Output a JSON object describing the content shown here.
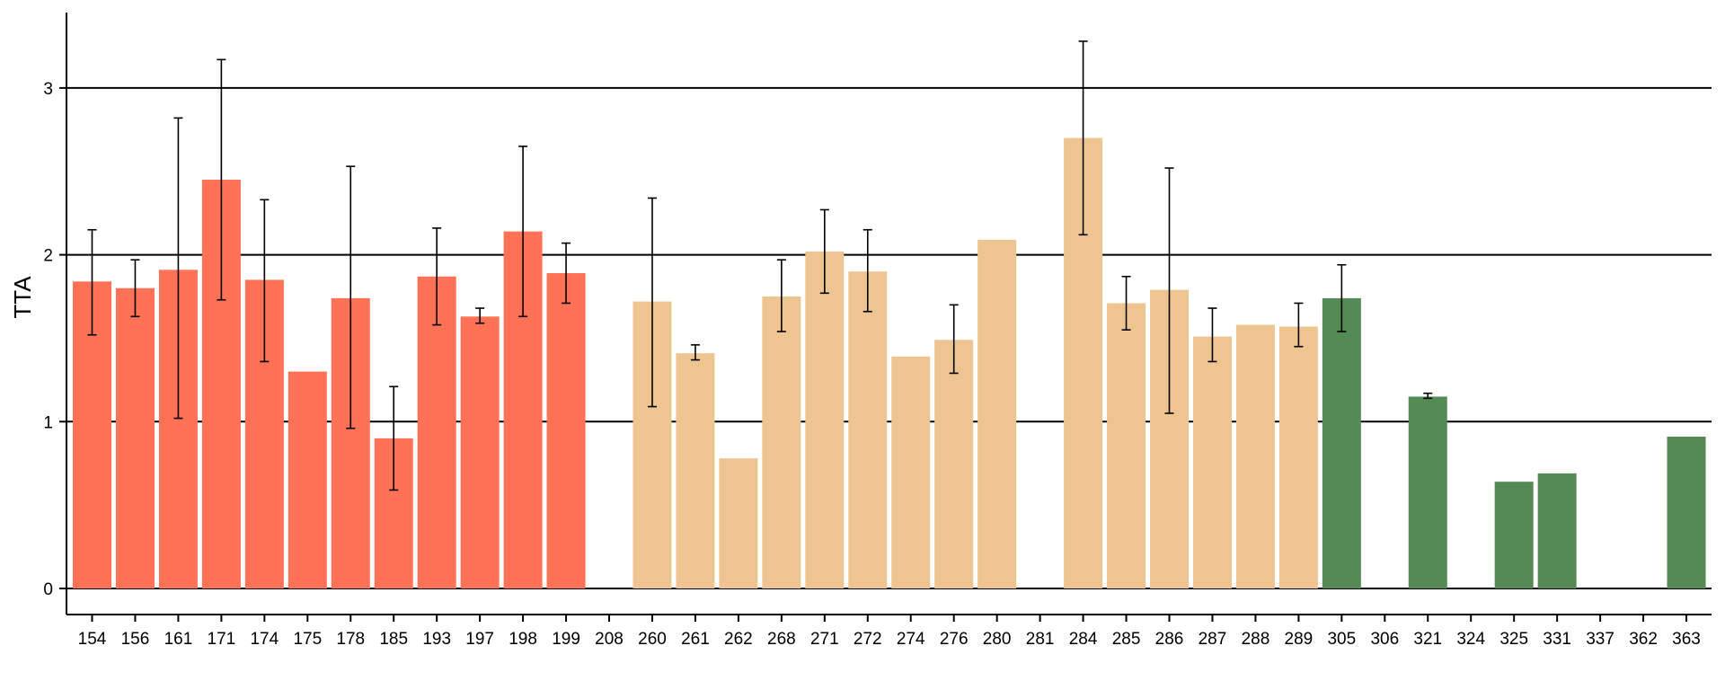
{
  "chart_data": {
    "type": "bar",
    "title": "",
    "xlabel": "",
    "ylabel": "TTA",
    "ylim": [
      0,
      3.4
    ],
    "yticks": [
      0,
      1,
      2,
      3
    ],
    "grid": "horizontal at 1, 2, 3",
    "legend": "none",
    "categories": [
      "154",
      "156",
      "161",
      "171",
      "174",
      "175",
      "178",
      "185",
      "193",
      "197",
      "198",
      "199",
      "208",
      "260",
      "261",
      "262",
      "268",
      "271",
      "272",
      "274",
      "276",
      "280",
      "281",
      "284",
      "285",
      "286",
      "287",
      "288",
      "289",
      "305",
      "306",
      "321",
      "324",
      "325",
      "331",
      "337",
      "362",
      "363"
    ],
    "values": [
      1.84,
      1.8,
      1.91,
      2.45,
      1.85,
      1.3,
      1.74,
      0.9,
      1.87,
      1.63,
      2.14,
      1.89,
      null,
      1.72,
      1.41,
      0.78,
      1.75,
      2.02,
      1.9,
      1.39,
      1.49,
      2.09,
      null,
      2.7,
      1.71,
      1.79,
      1.51,
      1.58,
      1.57,
      1.74,
      null,
      1.15,
      null,
      0.64,
      0.69,
      null,
      null,
      0.91
    ],
    "error_low": [
      1.52,
      1.63,
      1.02,
      1.73,
      1.36,
      null,
      0.96,
      0.59,
      1.58,
      1.59,
      1.63,
      1.71,
      null,
      1.09,
      1.37,
      null,
      1.54,
      1.77,
      1.66,
      null,
      1.29,
      null,
      null,
      2.12,
      1.55,
      1.05,
      1.36,
      null,
      1.45,
      1.54,
      null,
      1.14,
      null,
      null,
      null,
      null,
      null,
      null
    ],
    "error_high": [
      2.15,
      1.97,
      2.82,
      3.17,
      2.33,
      null,
      2.53,
      1.21,
      2.16,
      1.68,
      2.65,
      2.07,
      null,
      2.34,
      1.46,
      null,
      1.97,
      2.27,
      2.15,
      null,
      1.7,
      null,
      null,
      3.28,
      1.87,
      2.52,
      1.68,
      null,
      1.71,
      1.94,
      null,
      1.17,
      null,
      null,
      null,
      null,
      null,
      null
    ],
    "colors": {
      "group1": "#FF7256",
      "group2": "#EEC591",
      "group3": "#548B54",
      "axis": "#000000"
    },
    "bar_groups": [
      "group1",
      "group1",
      "group1",
      "group1",
      "group1",
      "group1",
      "group1",
      "group1",
      "group1",
      "group1",
      "group1",
      "group1",
      "group1",
      "group2",
      "group2",
      "group2",
      "group2",
      "group2",
      "group2",
      "group2",
      "group2",
      "group2",
      "group2",
      "group2",
      "group2",
      "group2",
      "group2",
      "group2",
      "group2",
      "group3",
      "group3",
      "group3",
      "group3",
      "group3",
      "group3",
      "group3",
      "group3",
      "group3"
    ]
  }
}
